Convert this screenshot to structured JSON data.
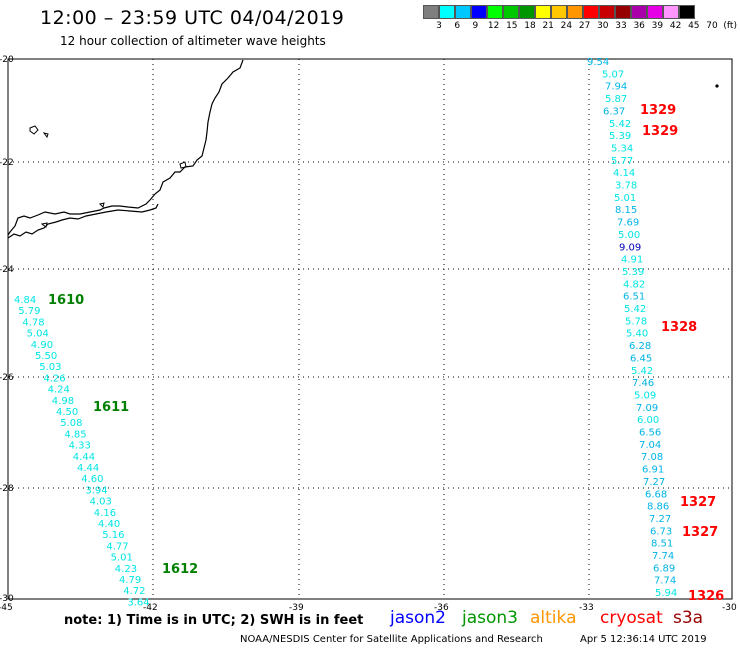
{
  "header": {
    "title": "12:00 – 23:59 UTC 04/04/2019",
    "subtitle": "12 hour collection of altimeter wave heights"
  },
  "legend": {
    "colors": [
      "#7f7f7f",
      "#00ffff",
      "#00c8ff",
      "#0000ff",
      "#00ff00",
      "#00c800",
      "#009600",
      "#ffff00",
      "#ffc800",
      "#ff9600",
      "#ff0000",
      "#c80000",
      "#960000",
      "#aa00aa",
      "#e600e6",
      "#ff96ff",
      "#000000"
    ],
    "labels": [
      "3",
      "6",
      "9",
      "12",
      "15",
      "18",
      "21",
      "24",
      "27",
      "30",
      "33",
      "36",
      "39",
      "42",
      "45",
      "70",
      "(ft)"
    ]
  },
  "axes": {
    "lat_labels": [
      "-20",
      "-22",
      "-24",
      "-26",
      "-28",
      "-30"
    ],
    "lon_labels": [
      "-45",
      "-42",
      "-39",
      "-36",
      "-33",
      "-30"
    ]
  },
  "tracks": {
    "east": {
      "values": [
        "9.54",
        "5.07",
        "7.94",
        "5.87",
        "6.37",
        "5.42",
        "5.39",
        "5.34",
        "5.77",
        "4.14",
        "3.78",
        "5.01",
        "8.15",
        "7.69",
        "5.00",
        "9.09",
        "4.91",
        "5.39",
        "4.82",
        "6.51",
        "5.42",
        "5.78",
        "5.40",
        "6.28",
        "6.45",
        "5.42",
        "7.46",
        "5.09",
        "7.09",
        "6.00",
        "6.56",
        "7.04",
        "7.08",
        "6.91",
        "7.27",
        "6.68",
        "8.86",
        "7.27",
        "6.73",
        "8.51",
        "7.74",
        "6.89",
        "7.74",
        "5.94"
      ],
      "color_index": [
        2,
        1,
        2,
        1,
        2,
        1,
        1,
        1,
        1,
        1,
        1,
        1,
        2,
        2,
        1,
        3,
        1,
        1,
        1,
        2,
        1,
        1,
        1,
        2,
        2,
        1,
        2,
        1,
        2,
        1,
        2,
        2,
        2,
        2,
        2,
        2,
        2,
        2,
        2,
        2,
        2,
        2,
        2,
        1
      ]
    },
    "west": {
      "values": [
        "4.84",
        "5.79",
        "4.78",
        "5.04",
        "4.90",
        "5.50",
        "5.03",
        "4.26",
        "4.24",
        "4.98",
        "4.50",
        "5.08",
        "4.85",
        "4.33",
        "4.44",
        "4.44",
        "4.60",
        "3.94",
        "4.03",
        "4.16",
        "4.40",
        "5.16",
        "4.77",
        "5.01",
        "4.23",
        "4.79",
        "4.72",
        "3.64"
      ]
    }
  },
  "time_tags": [
    {
      "text": "1329",
      "color": "#ff0000"
    },
    {
      "text": "1329",
      "color": "#ff0000"
    },
    {
      "text": "1328",
      "color": "#ff0000"
    },
    {
      "text": "1327",
      "color": "#ff0000"
    },
    {
      "text": "1327",
      "color": "#ff0000"
    },
    {
      "text": "1326",
      "color": "#ff0000"
    },
    {
      "text": "1610",
      "color": "#008000"
    },
    {
      "text": "1611",
      "color": "#008000"
    },
    {
      "text": "1612",
      "color": "#008000"
    }
  ],
  "footer": {
    "note": "note:  1) Time is in UTC;  2) SWH is in feet",
    "satellites": [
      {
        "name": "jason2",
        "color": "#0000ff"
      },
      {
        "name": "jason3",
        "color": "#009600"
      },
      {
        "name": "altika",
        "color": "#ff9600"
      },
      {
        "name": "cryosat",
        "color": "#ff0000"
      },
      {
        "name": "s3a",
        "color": "#960000"
      }
    ],
    "credit": "NOAA/NESDIS Center for Satellite Applications and Research",
    "generated": "Apr  5 12:36:14 UTC 2019"
  }
}
